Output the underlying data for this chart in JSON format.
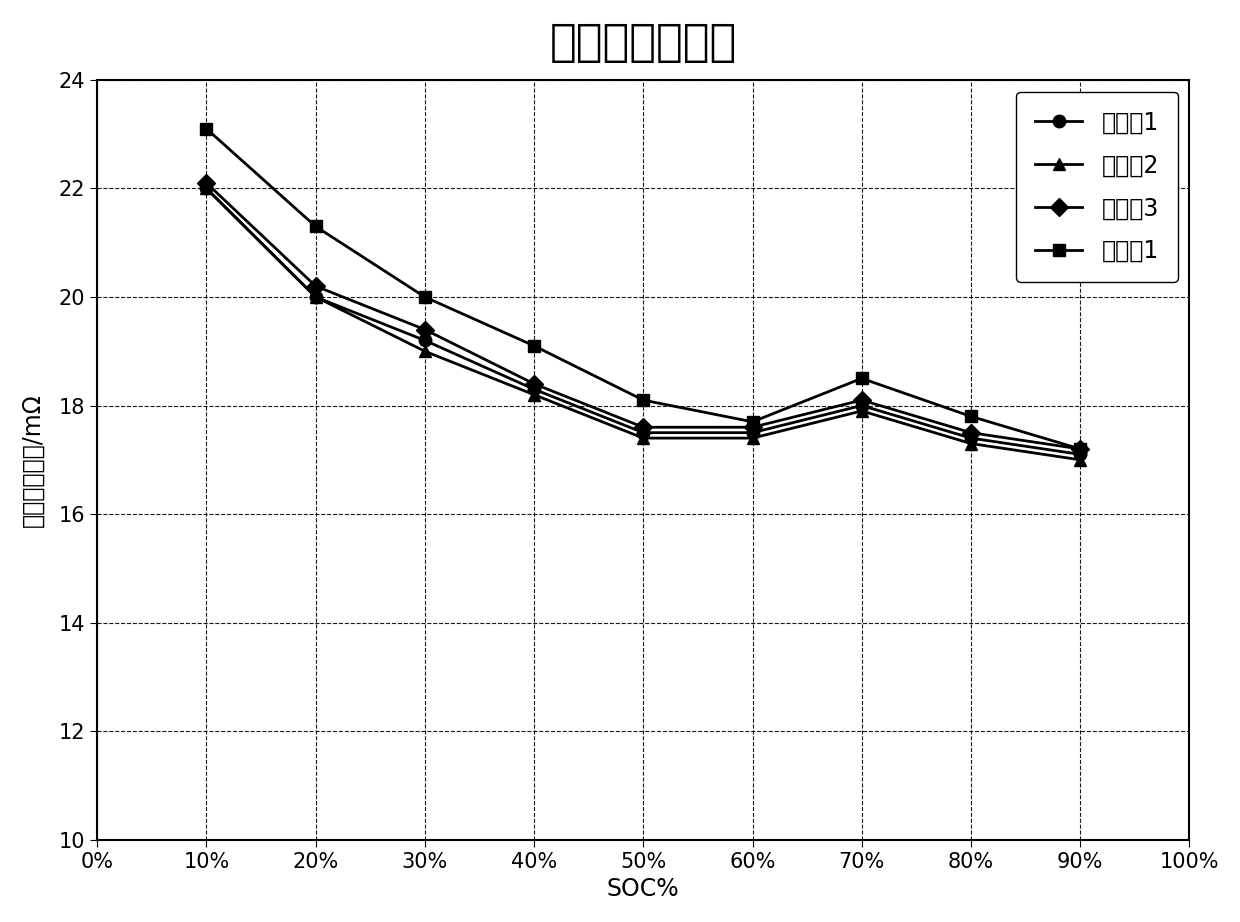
{
  "title": "直流内阻对比图",
  "xlabel": "SOC%",
  "ylabel": "放电直流内阻/mΩ",
  "xlim": [
    0,
    1.0
  ],
  "ylim": [
    10,
    24
  ],
  "yticks": [
    10,
    12,
    14,
    16,
    18,
    20,
    22,
    24
  ],
  "xtick_labels": [
    "0%",
    "10%",
    "20%",
    "30%",
    "40%",
    "50%",
    "60%",
    "70%",
    "80%",
    "90%",
    "100%"
  ],
  "xtick_positions": [
    0,
    0.1,
    0.2,
    0.3,
    0.4,
    0.5,
    0.6,
    0.7,
    0.8,
    0.9,
    1.0
  ],
  "x_data": [
    0.1,
    0.2,
    0.3,
    0.4,
    0.5,
    0.6,
    0.7,
    0.8,
    0.9
  ],
  "series": [
    {
      "label": "实施例1",
      "values": [
        22.0,
        20.0,
        19.2,
        18.3,
        17.5,
        17.5,
        18.0,
        17.4,
        17.1
      ],
      "marker": "o",
      "color": "#000000"
    },
    {
      "label": "实施例2",
      "values": [
        22.0,
        20.0,
        19.0,
        18.2,
        17.4,
        17.4,
        17.9,
        17.3,
        17.0
      ],
      "marker": "^",
      "color": "#000000"
    },
    {
      "label": "实施例3",
      "values": [
        22.1,
        20.2,
        19.4,
        18.4,
        17.6,
        17.6,
        18.1,
        17.5,
        17.2
      ],
      "marker": "D",
      "color": "#000000"
    },
    {
      "label": "对比例1",
      "values": [
        23.1,
        21.3,
        20.0,
        19.1,
        18.1,
        17.7,
        18.5,
        17.8,
        17.2
      ],
      "marker": "s",
      "color": "#000000"
    }
  ],
  "background_color": "#ffffff",
  "grid_color": "#000000",
  "linewidth": 2.0,
  "markersize": 9,
  "title_fontsize": 32,
  "axis_label_fontsize": 17,
  "tick_fontsize": 15,
  "legend_fontsize": 17
}
